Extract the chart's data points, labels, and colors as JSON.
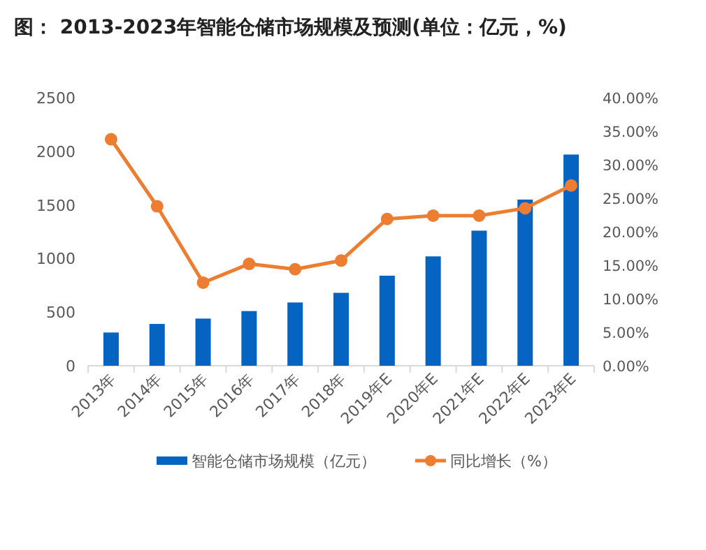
{
  "chart_data": {
    "type": "bar",
    "title": "图： 2013-2023年智能仓储市场规模及预测(单位：亿元，%)",
    "categories": [
      "2013年",
      "2014年",
      "2015年",
      "2016年",
      "2017年",
      "2018年",
      "2019年E",
      "2020年E",
      "2021年E",
      "2022年E",
      "2023年E"
    ],
    "series": [
      {
        "name": "智能仓储市场规模（亿元）",
        "color": "#0563c1",
        "values": [
          310,
          390,
          440,
          510,
          590,
          680,
          840,
          1020,
          1260,
          1550,
          1970
        ]
      },
      {
        "name": "同比增长（%）",
        "type": "line",
        "axis": "y2",
        "color": "#ed7d31",
        "marker": "circle",
        "values": [
          33.8,
          23.8,
          12.4,
          15.2,
          14.4,
          15.7,
          21.9,
          22.4,
          22.4,
          23.5,
          26.9
        ]
      }
    ],
    "ylim": [
      0,
      2500
    ],
    "yticks": [
      0,
      500,
      1000,
      1500,
      2000,
      2500
    ],
    "y2lim": [
      0,
      40
    ],
    "y2ticks": [
      {
        "value": 0,
        "label": "0.00%"
      },
      {
        "value": 5,
        "label": "5.00%"
      },
      {
        "value": 10,
        "label": "10.00%"
      },
      {
        "value": 15,
        "label": "15.00%"
      },
      {
        "value": 20,
        "label": "20.00%"
      },
      {
        "value": 25,
        "label": "25.00%"
      },
      {
        "value": 30,
        "label": "30.00%"
      },
      {
        "value": 35,
        "label": "35.00%"
      },
      {
        "value": 40,
        "label": "40.00%"
      }
    ],
    "legend": "bottom",
    "grid": false
  }
}
